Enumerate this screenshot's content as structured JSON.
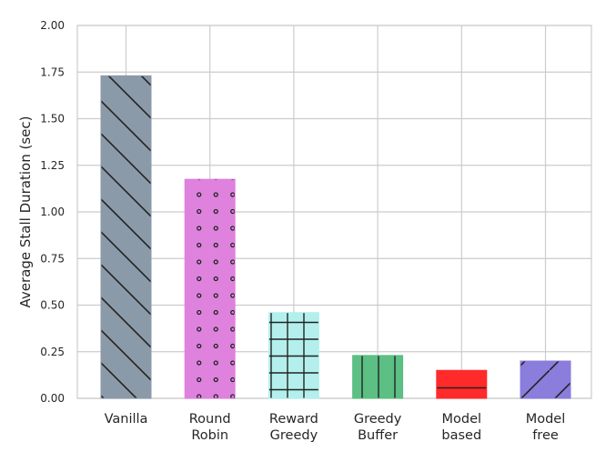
{
  "chart_data": {
    "type": "bar",
    "title": "",
    "xlabel": "",
    "ylabel": "Average Stall Duration (sec)",
    "ylim": [
      0,
      2.0
    ],
    "yticks": [
      "0.00",
      "0.25",
      "0.50",
      "0.75",
      "1.00",
      "1.25",
      "1.50",
      "1.75",
      "2.00"
    ],
    "grid": true,
    "categories": [
      [
        "Vanilla"
      ],
      [
        "Round",
        "Robin"
      ],
      [
        "Reward",
        "Greedy"
      ],
      [
        "Greedy",
        "Buffer"
      ],
      [
        "Model",
        "based"
      ],
      [
        "Model",
        "free"
      ]
    ],
    "values": [
      1.73,
      1.175,
      0.46,
      0.23,
      0.15,
      0.2
    ],
    "colors": [
      "#8b9aa8",
      "#de82de",
      "#b3f0ed",
      "#5cbf84",
      "#ff2a2a",
      "#8a7ddc"
    ],
    "hatches": [
      "backslash",
      "dots",
      "grid",
      "vertical",
      "horizontal",
      "slash"
    ]
  }
}
